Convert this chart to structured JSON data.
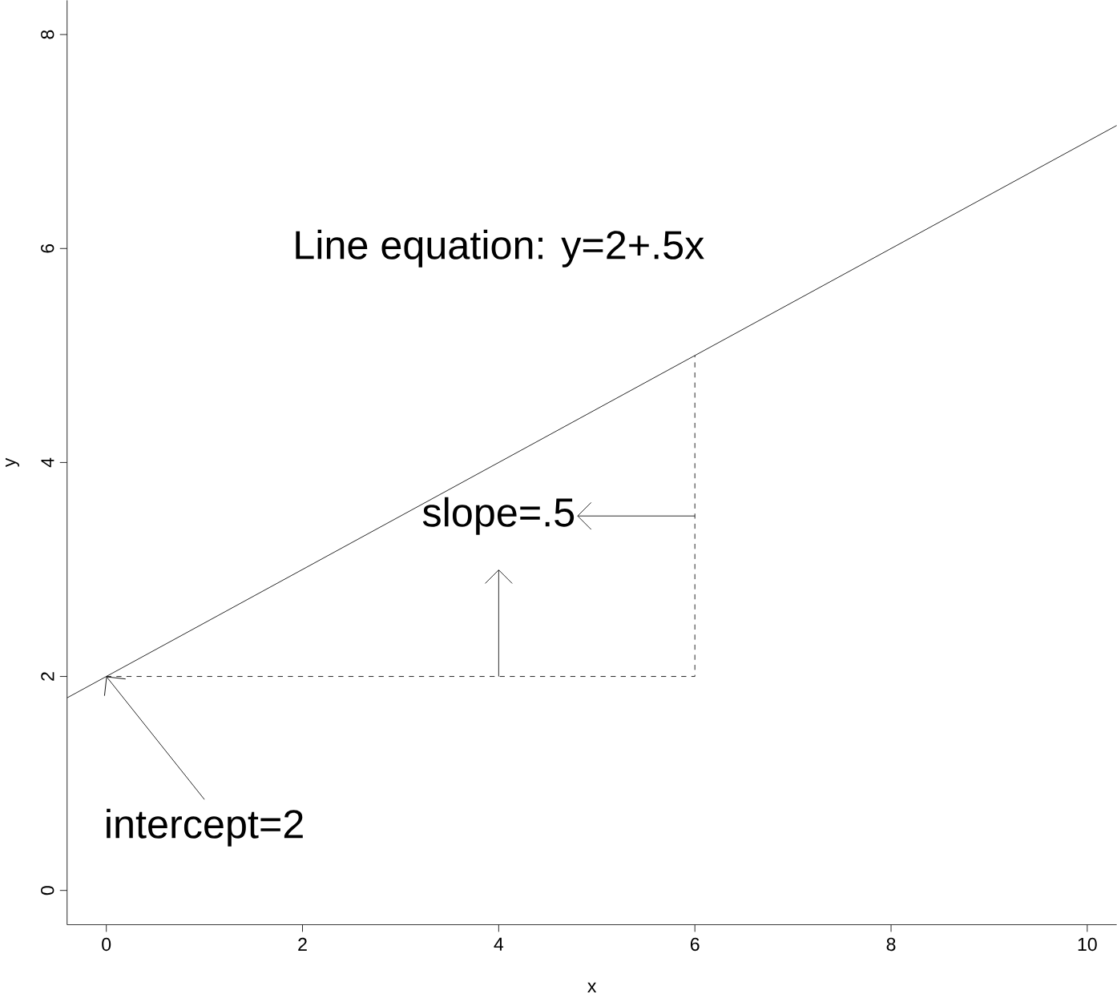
{
  "chart_data": {
    "type": "line",
    "xlabel": "x",
    "ylabel": "y",
    "xlim": [
      -0.4,
      10.3
    ],
    "ylim": [
      -0.32,
      8.32
    ],
    "xticks": [
      0,
      2,
      4,
      6,
      8,
      10
    ],
    "yticks": [
      0,
      2,
      4,
      6,
      8
    ],
    "series": [
      {
        "x": [
          -0.4,
          10.3
        ],
        "values": [
          1.8,
          7.15
        ],
        "color": "#000000",
        "line_style": "solid"
      },
      {
        "x": [
          0,
          6,
          6
        ],
        "values": [
          2,
          2,
          5
        ],
        "color": "#000000",
        "line_style": "dashed"
      }
    ],
    "annotations": [
      "Line equation: y=2+.5x",
      {
        "text": "intercept=2",
        "x": 0,
        "y": 2
      },
      {
        "text": "slope=.5",
        "x": 4,
        "y": 2
      }
    ],
    "grid": false,
    "marker": "none"
  }
}
